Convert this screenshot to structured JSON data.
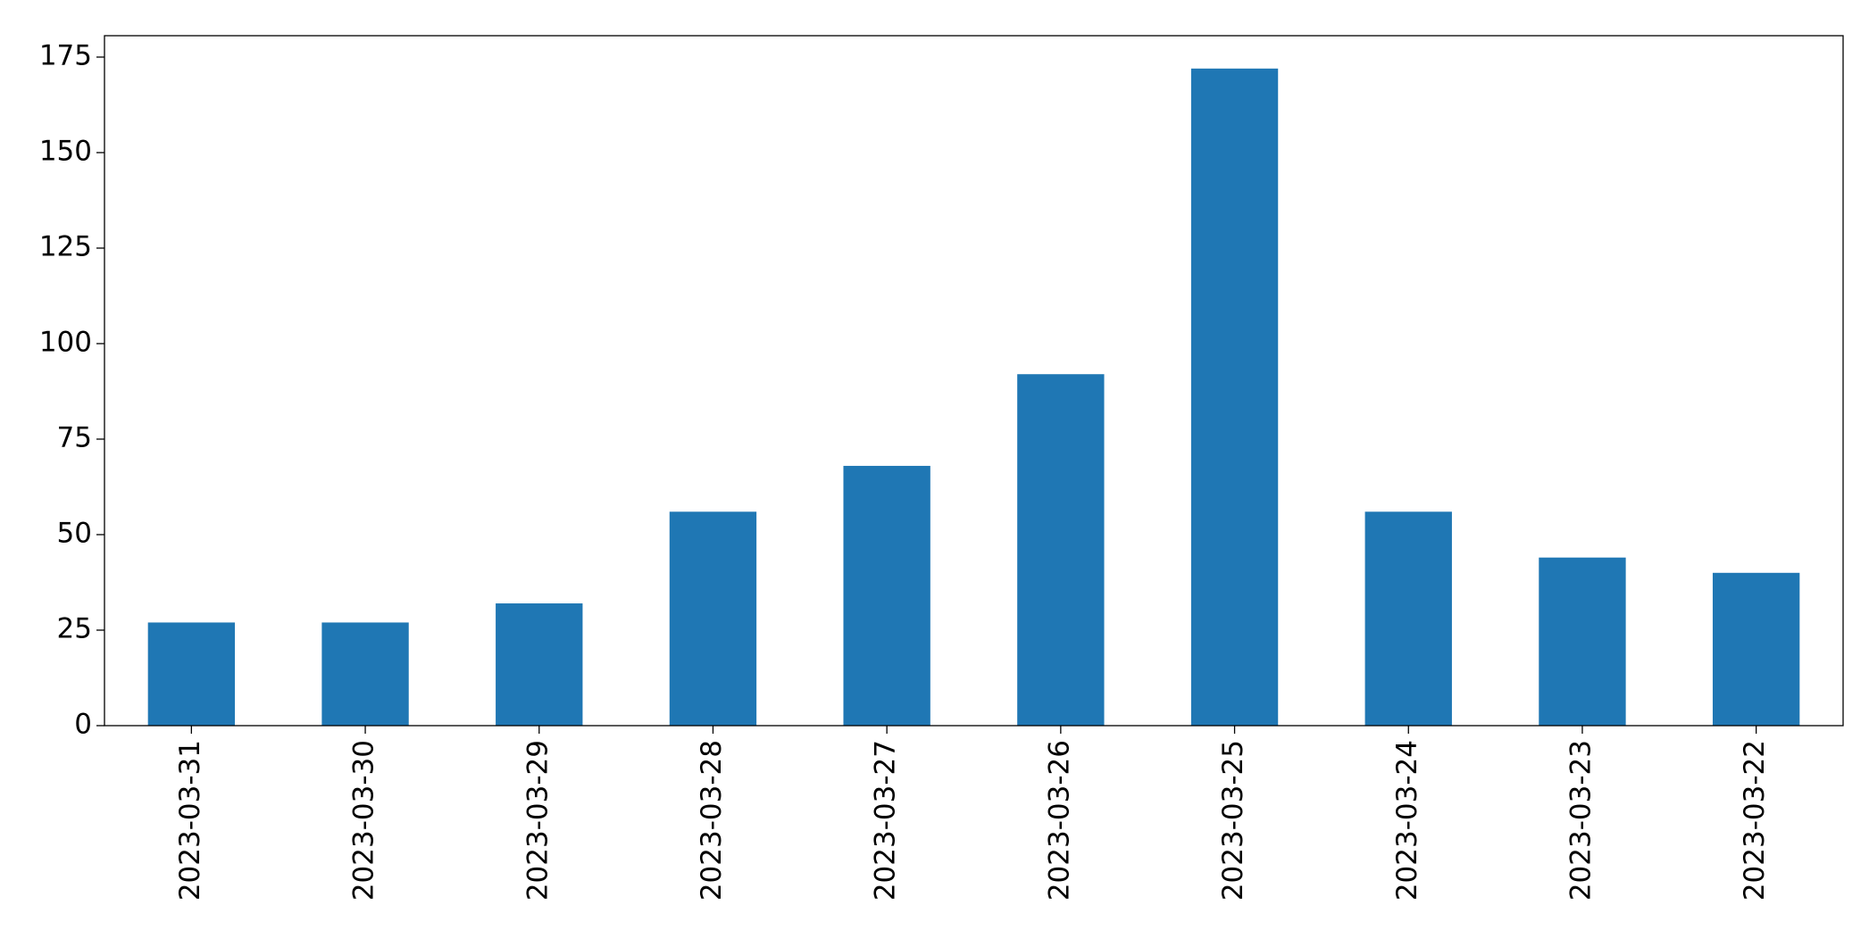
{
  "chart_data": {
    "type": "bar",
    "categories": [
      "2023-03-31",
      "2023-03-30",
      "2023-03-29",
      "2023-03-28",
      "2023-03-27",
      "2023-03-26",
      "2023-03-25",
      "2023-03-24",
      "2023-03-23",
      "2023-03-22"
    ],
    "values": [
      27,
      27,
      32,
      56,
      68,
      92,
      172,
      56,
      44,
      40
    ],
    "color": "#1f77b4",
    "ylim": [
      0,
      180.6
    ],
    "yticks": [
      0,
      25,
      50,
      75,
      100,
      125,
      150,
      175
    ],
    "grid": false
  }
}
